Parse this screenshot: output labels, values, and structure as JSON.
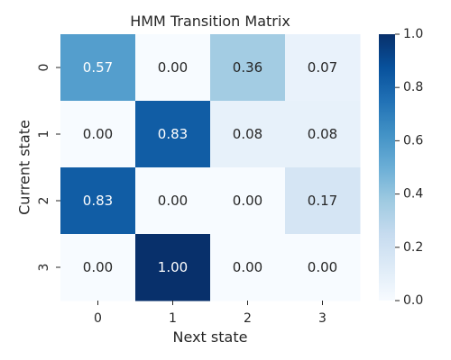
{
  "chart_data": {
    "type": "heatmap",
    "title": "HMM Transition Matrix",
    "xlabel": "Next state",
    "ylabel": "Current state",
    "x_categories": [
      "0",
      "1",
      "2",
      "3"
    ],
    "y_categories": [
      "0",
      "1",
      "2",
      "3"
    ],
    "values": [
      [
        0.57,
        0.0,
        0.36,
        0.07
      ],
      [
        0.0,
        0.83,
        0.08,
        0.08
      ],
      [
        0.83,
        0.0,
        0.0,
        0.17
      ],
      [
        0.0,
        1.0,
        0.0,
        0.0
      ]
    ],
    "annotation_format": "0.00",
    "colorbar": {
      "min": 0.0,
      "max": 1.0,
      "ticks": [
        "0.0",
        "0.2",
        "0.4",
        "0.6",
        "0.8",
        "1.0"
      ],
      "colormap": "Blues",
      "low_color": "#f7fbff",
      "high_color": "#08306b"
    },
    "grid": false
  }
}
